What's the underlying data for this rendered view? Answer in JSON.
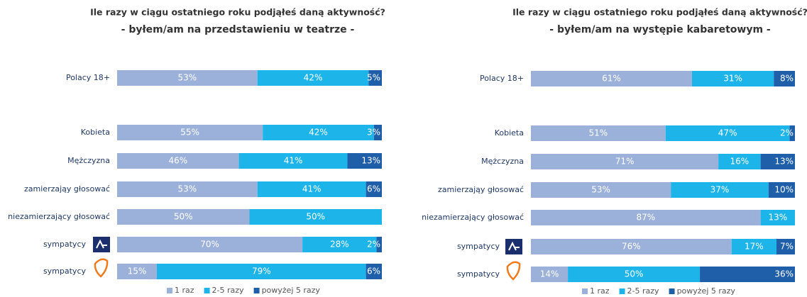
{
  "chart_data": [
    {
      "type": "stacked-bar-horizontal",
      "title": "Ile razy w ciągu ostatniego roku podjąłeś daną aktywność?",
      "subtitle": "- byłem/am na przedstawieniu w teatrze -",
      "categories": [
        "Polacy 18+",
        "Kobieta",
        "Mężczyzna",
        "zamierzająy głosować",
        "niezamierzający głosować",
        "sympatycy",
        "sympatycy"
      ],
      "xlim": [
        0,
        100
      ],
      "series": [
        {
          "name": "1 raz",
          "color": "#9cb1d9",
          "values": [
            53,
            55,
            46,
            53,
            50,
            70,
            15
          ],
          "value_labels": [
            "53%",
            "55%",
            "46%",
            "53%",
            "50%",
            "70%",
            "15%"
          ]
        },
        {
          "name": "2-5 razy",
          "color": "#1db4ea",
          "values": [
            42,
            42,
            41,
            41,
            50,
            28,
            79
          ],
          "value_labels": [
            "42%",
            "42%",
            "41%",
            "41%",
            "50%",
            "28%",
            "79%"
          ]
        },
        {
          "name": "powyżej 5 razy",
          "color": "#1f5ea8",
          "values": [
            5,
            3,
            13,
            6,
            null,
            2,
            6
          ],
          "value_labels": [
            "5%",
            "3%",
            "13%",
            "6%",
            null,
            "2%",
            "6%"
          ]
        }
      ]
    },
    {
      "type": "stacked-bar-horizontal",
      "title": "Ile razy w ciągu ostatniego roku podjąłeś daną aktywność?",
      "subtitle": "- byłem/am na występie kabaretowym -",
      "categories": [
        "Polacy 18+",
        "Kobieta",
        "Mężczyzna",
        "zamierzająy głosować",
        "niezamierzający głosować",
        "sympatycy",
        "sympatycy"
      ],
      "xlim": [
        0,
        100
      ],
      "series": [
        {
          "name": "1 raz",
          "color": "#9cb1d9",
          "values": [
            61,
            51,
            71,
            53,
            87,
            76,
            14
          ],
          "value_labels": [
            "61%",
            "51%",
            "71%",
            "53%",
            "87%",
            "76%",
            "14%"
          ]
        },
        {
          "name": "2-5 razy",
          "color": "#1db4ea",
          "values": [
            31,
            47,
            16,
            37,
            13,
            17,
            50
          ],
          "value_labels": [
            "31%",
            "47%",
            "16%",
            "37%",
            "13%",
            "17%",
            "50%"
          ]
        },
        {
          "name": "powyżej 5 razy",
          "color": "#1f5ea8",
          "values": [
            8,
            2,
            13,
            10,
            null,
            7,
            36
          ],
          "value_labels": [
            "8%",
            "2%",
            "13%",
            "10%",
            null,
            "7%",
            "36%"
          ]
        }
      ]
    }
  ]
}
